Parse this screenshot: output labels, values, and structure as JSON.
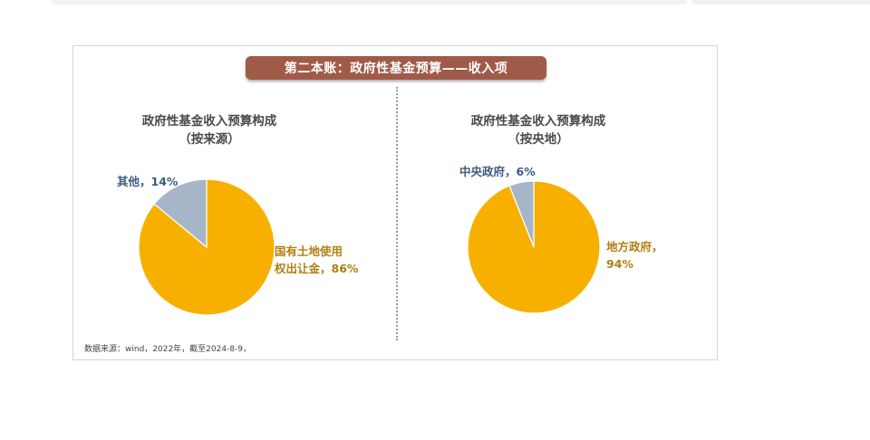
{
  "banner": {
    "title": "第二本账：政府性基金预算——收入项"
  },
  "colors": {
    "major": "#F7B000",
    "minor": "#A6B6C8",
    "major_label": "#B07F10",
    "minor_label": "#3E5C80",
    "banner_bg": "#A05A48"
  },
  "source": "数据来源：wind，2022年，截至2024-8-9，",
  "chart_data": [
    {
      "type": "pie",
      "title": "政府性基金收入预算构成",
      "subtitle": "（按来源）",
      "slices": [
        {
          "label_lines": [
            "国有土地使用",
            "权出让金，86%"
          ],
          "value": 86,
          "color": "#F7B000"
        },
        {
          "label_lines": [
            "其他，14%"
          ],
          "value": 14,
          "color": "#A6B6C8"
        }
      ]
    },
    {
      "type": "pie",
      "title": "政府性基金收入预算构成",
      "subtitle": "（按央地）",
      "slices": [
        {
          "label_lines": [
            "地方政府，",
            "94%"
          ],
          "value": 94,
          "color": "#F7B000"
        },
        {
          "label_lines": [
            "中央政府，6%"
          ],
          "value": 6,
          "color": "#A6B6C8"
        }
      ]
    }
  ]
}
